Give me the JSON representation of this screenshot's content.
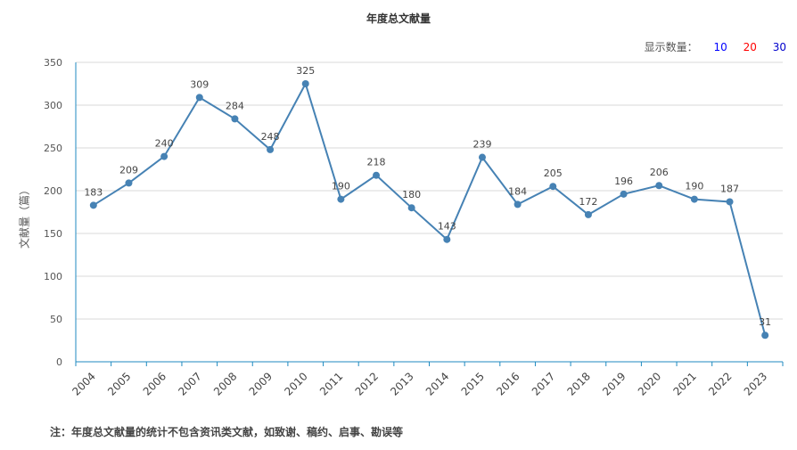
{
  "title": "年度总文献量",
  "count_selector": {
    "label": "显示数量：",
    "options": [
      "10",
      "20",
      "30"
    ],
    "colors": [
      "#0000ff",
      "#ff0000",
      "#0000cc"
    ]
  },
  "footnote": "注：年度总文献量的统计不包含资讯类文献，如致谢、稿约、启事、勘误等",
  "chart_data": {
    "type": "line",
    "title": "年度总文献量",
    "xlabel": "",
    "ylabel": "文献量（篇）",
    "categories": [
      "2004",
      "2005",
      "2006",
      "2007",
      "2008",
      "2009",
      "2010",
      "2011",
      "2012",
      "2013",
      "2014",
      "2015",
      "2016",
      "2017",
      "2018",
      "2019",
      "2020",
      "2021",
      "2022",
      "2023"
    ],
    "series": [
      {
        "values": [
          183,
          209,
          240,
          309,
          284,
          248,
          325,
          190,
          218,
          180,
          143,
          239,
          184,
          205,
          172,
          196,
          206,
          190,
          187,
          31
        ]
      }
    ],
    "ylim": [
      0,
      350
    ],
    "yticks": [
      0,
      50,
      100,
      150,
      200,
      250,
      300,
      350
    ],
    "grid": true,
    "line_color": "#4682b4",
    "axis_color": "#1f8ac0"
  }
}
